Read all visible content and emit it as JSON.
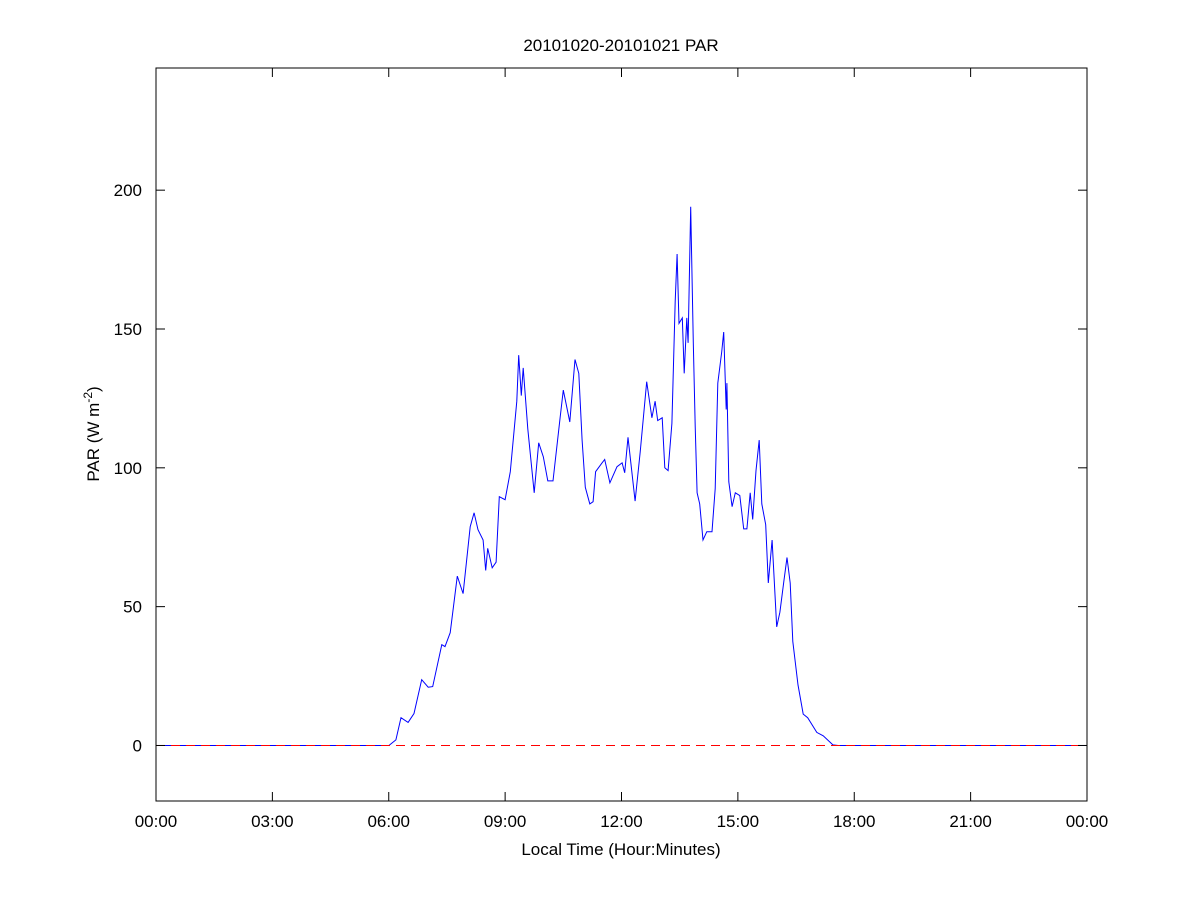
{
  "chart_data": {
    "type": "line",
    "title": "20101020-20101021 PAR",
    "xlabel": "Local Time (Hour:Minutes)",
    "ylabel": {
      "text": "PAR (W m",
      "superscript": "-2",
      "suffix": ")"
    },
    "xlim": [
      "00:00",
      "24:00"
    ],
    "ylim": [
      -20,
      244
    ],
    "x_ticks": [
      "00:00",
      "03:00",
      "06:00",
      "09:00",
      "12:00",
      "15:00",
      "18:00",
      "21:00",
      "00:00"
    ],
    "y_ticks": [
      0,
      50,
      100,
      150,
      200
    ],
    "grid": false,
    "series": [
      {
        "color": "#0000ff",
        "x": [
          "00:00",
          "06:00",
          "06:02",
          "06:11",
          "06:19",
          "06:30",
          "06:39",
          "06:51",
          "07:01",
          "07:08",
          "07:22",
          "07:27",
          "07:35",
          "07:46",
          "07:55",
          "08:06",
          "08:12",
          "08:18",
          "08:26",
          "08:30",
          "08:33",
          "08:40",
          "08:46",
          "08:51",
          "09:00",
          "09:08",
          "09:18",
          "09:21",
          "09:25",
          "09:28",
          "09:35",
          "09:45",
          "09:52",
          "09:59",
          "10:06",
          "10:14",
          "10:25",
          "10:30",
          "10:40",
          "10:48",
          "10:54",
          "10:59",
          "11:04",
          "11:11",
          "11:16",
          "11:20",
          "11:30",
          "11:34",
          "11:42",
          "11:53",
          "12:01",
          "12:05",
          "12:10",
          "12:21",
          "12:29",
          "12:39",
          "12:47",
          "12:52",
          "12:56",
          "13:03",
          "13:07",
          "13:12",
          "13:18",
          "13:23",
          "13:26",
          "13:29",
          "13:34",
          "13:37",
          "13:41",
          "13:43",
          "13:47",
          "13:51",
          "13:54",
          "13:57",
          "14:01",
          "14:06",
          "14:12",
          "14:20",
          "14:25",
          "14:29",
          "14:35",
          "14:38",
          "14:42",
          "14:43",
          "14:46",
          "14:51",
          "14:56",
          "15:03",
          "15:09",
          "15:14",
          "15:19",
          "15:23",
          "15:28",
          "15:33",
          "15:37",
          "15:43",
          "15:47",
          "15:53",
          "16:00",
          "16:05",
          "16:11",
          "16:16",
          "16:21",
          "16:25",
          "16:33",
          "16:41",
          "16:48",
          "17:02",
          "17:12",
          "17:27",
          "17:35",
          "24:00"
        ],
        "y": [
          0,
          0,
          0.3,
          2,
          10,
          8.3,
          11.5,
          23.7,
          21,
          21.2,
          36.3,
          35.6,
          40.6,
          61,
          54.7,
          78.8,
          83.8,
          77.7,
          74,
          63,
          71,
          64,
          66,
          89.6,
          88.5,
          98.6,
          124,
          140.6,
          126,
          136,
          114,
          91,
          109,
          104,
          95.3,
          95.3,
          118,
          128,
          116.5,
          139,
          134,
          110,
          93,
          87,
          87.8,
          98.6,
          101.8,
          103,
          94.6,
          100.4,
          101.8,
          98.2,
          111,
          88,
          105.7,
          131,
          118,
          124,
          117,
          118,
          100,
          99,
          116,
          160,
          177,
          152,
          154,
          134,
          154,
          145,
          194,
          145,
          115,
          91,
          87,
          74,
          77,
          77,
          92.5,
          130.5,
          141.7,
          148.9,
          121,
          130.5,
          95,
          86,
          91,
          90,
          78,
          78,
          91,
          81.4,
          99,
          110,
          87,
          79.5,
          58.5,
          74,
          42.7,
          48,
          59,
          67.7,
          58.5,
          37.5,
          21.8,
          11.3,
          10,
          4.7,
          3.5,
          0.2,
          0,
          0
        ]
      },
      {
        "color": "#ff0000",
        "style": "dashed",
        "x": [
          "00:00",
          "24:00"
        ],
        "y": [
          0,
          0
        ]
      }
    ]
  }
}
